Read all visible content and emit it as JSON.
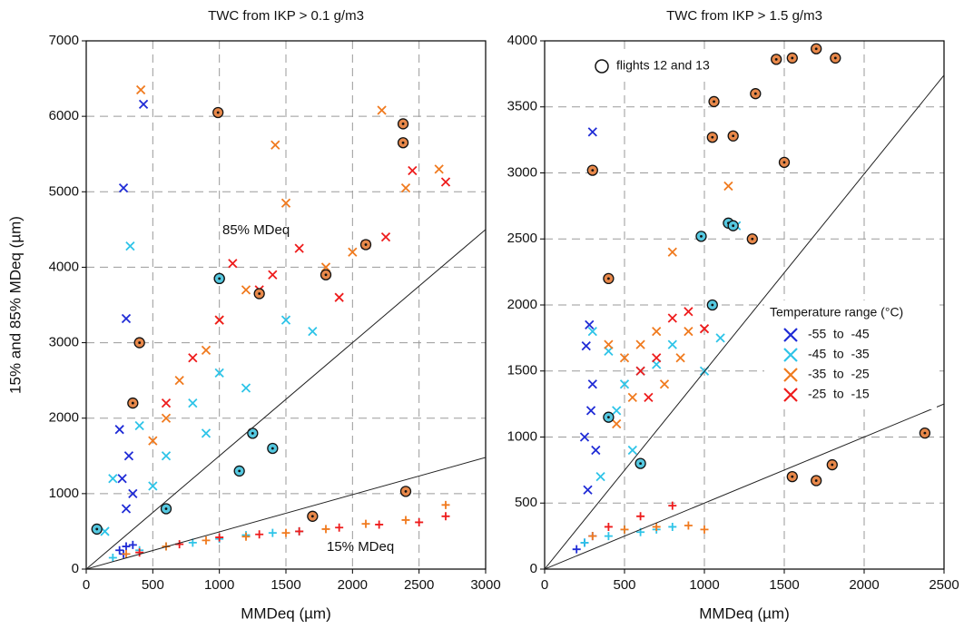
{
  "chart_data": [
    {
      "type": "scatter",
      "title": "TWC from IKP > 0.1 g/m3",
      "xlabel": "MMDeq (µm)",
      "ylabel": "15% and 85% MDeq (µm)",
      "xlim": [
        0,
        3000
      ],
      "ylim": [
        0,
        7000
      ],
      "xticks": [
        0,
        500,
        1000,
        1500,
        2000,
        2500,
        3000
      ],
      "yticks": [
        0,
        1000,
        2000,
        3000,
        4000,
        5000,
        6000,
        7000
      ],
      "grid": true,
      "annotations": [
        "85% MDeq",
        "15% MDeq"
      ],
      "lines": [
        {
          "x": [
            0,
            3000
          ],
          "y": [
            0,
            4500
          ]
        },
        {
          "x": [
            0,
            3000
          ],
          "y": [
            0,
            1480
          ]
        }
      ],
      "series": [
        {
          "color": "#1f2bd6",
          "marker": "+",
          "x": [
            250,
            300,
            350,
            280
          ],
          "y": [
            250,
            300,
            320,
            200
          ]
        },
        {
          "color": "#2ec4e8",
          "marker": "+",
          "x": [
            200,
            400,
            600,
            800,
            1000,
            1200,
            1400,
            1600
          ],
          "y": [
            150,
            250,
            300,
            350,
            400,
            450,
            480,
            500
          ]
        },
        {
          "color": "#f07a1e",
          "marker": "+",
          "x": [
            300,
            600,
            900,
            1200,
            1500,
            1800,
            2100,
            2400,
            2700
          ],
          "y": [
            200,
            300,
            380,
            430,
            480,
            530,
            600,
            650,
            850
          ]
        },
        {
          "color": "#ee1c1c",
          "marker": "+",
          "x": [
            400,
            700,
            1000,
            1300,
            1600,
            1900,
            2200,
            2500,
            2700
          ],
          "y": [
            220,
            330,
            420,
            460,
            500,
            550,
            590,
            620,
            700
          ]
        },
        {
          "color": "#1f2bd6",
          "marker": "x",
          "x": [
            280,
            300,
            320,
            350,
            430,
            250,
            300,
            270
          ],
          "y": [
            5050,
            3320,
            1500,
            1000,
            6160,
            1850,
            800,
            1200
          ]
        },
        {
          "color": "#2ec4e8",
          "marker": "x",
          "x": [
            330,
            200,
            400,
            600,
            800,
            1000,
            1200,
            1500,
            1700,
            140,
            500,
            900
          ],
          "y": [
            4280,
            1200,
            1900,
            1500,
            2200,
            2600,
            2400,
            3300,
            3150,
            500,
            1100,
            1800
          ]
        },
        {
          "color": "#f07a1e",
          "marker": "x",
          "x": [
            410,
            1420,
            2220,
            2650,
            1000,
            700,
            1500,
            2000,
            2400,
            600,
            1200,
            1800,
            900,
            500
          ],
          "y": [
            6350,
            5620,
            6080,
            5300,
            3300,
            2500,
            4850,
            4200,
            5050,
            2000,
            3700,
            4000,
            2900,
            1700
          ]
        },
        {
          "color": "#ee1c1c",
          "marker": "x",
          "x": [
            2450,
            2700,
            1100,
            1300,
            1600,
            1900,
            2100,
            800,
            600,
            1000,
            1400,
            2250
          ],
          "y": [
            5280,
            5130,
            4050,
            3700,
            4250,
            3600,
            4300,
            2800,
            2200,
            3300,
            3900,
            4400
          ]
        },
        {
          "color": "#e8884a",
          "marker": "circle",
          "x": [
            990,
            2380,
            2380,
            1800,
            2100,
            1300,
            1000,
            400,
            350,
            2400,
            1700
          ],
          "y": [
            6050,
            5900,
            5650,
            3900,
            4300,
            3650,
            3850,
            3000,
            2200,
            1030,
            700
          ]
        },
        {
          "color": "#55c8e0",
          "marker": "circle",
          "x": [
            1000,
            1250,
            1150,
            80,
            1400,
            600
          ],
          "y": [
            3850,
            1800,
            1300,
            530,
            1600,
            800
          ]
        }
      ]
    },
    {
      "type": "scatter",
      "title": "TWC from IKP > 1.5 g/m3",
      "xlabel": "MMDeq (µm)",
      "xlim": [
        0,
        2500
      ],
      "ylim": [
        0,
        4000
      ],
      "xticks": [
        0,
        500,
        1000,
        1500,
        2000,
        2500
      ],
      "yticks": [
        0,
        500,
        1000,
        1500,
        2000,
        2500,
        3000,
        3500,
        4000
      ],
      "grid": true,
      "legend_title": "Temperature range (°C)",
      "lines": [
        {
          "x": [
            0,
            2500
          ],
          "y": [
            0,
            3740
          ]
        },
        {
          "x": [
            0,
            2500
          ],
          "y": [
            0,
            1250
          ]
        }
      ],
      "series": [
        {
          "color": "#1f2bd6",
          "marker": "+",
          "x": [
            200,
            250,
            300
          ],
          "y": [
            150,
            200,
            250
          ]
        },
        {
          "color": "#2ec4e8",
          "marker": "+",
          "x": [
            250,
            400,
            500,
            600,
            700,
            800
          ],
          "y": [
            200,
            250,
            300,
            280,
            300,
            320
          ]
        },
        {
          "color": "#f07a1e",
          "marker": "+",
          "x": [
            300,
            500,
            700,
            900,
            1000
          ],
          "y": [
            250,
            300,
            320,
            330,
            300
          ]
        },
        {
          "color": "#ee1c1c",
          "marker": "+",
          "x": [
            400,
            600,
            800
          ],
          "y": [
            320,
            400,
            480
          ]
        },
        {
          "name": "-55  to  -45",
          "color": "#1f2bd6",
          "marker": "x",
          "x": [
            300,
            280,
            260,
            300,
            290,
            250,
            320,
            270
          ],
          "y": [
            3310,
            1850,
            1690,
            1400,
            1200,
            1000,
            900,
            600
          ]
        },
        {
          "name": "-45  to  -35",
          "color": "#2ec4e8",
          "marker": "x",
          "x": [
            300,
            400,
            500,
            600,
            700,
            800,
            1000,
            1100,
            1200,
            350,
            450,
            550
          ],
          "y": [
            1800,
            1650,
            1400,
            1500,
            1550,
            1700,
            1500,
            1750,
            2600,
            700,
            1200,
            900
          ]
        },
        {
          "name": "-35  to  -25",
          "color": "#f07a1e",
          "marker": "x",
          "x": [
            400,
            500,
            600,
            700,
            800,
            900,
            1150,
            450,
            550,
            750,
            850
          ],
          "y": [
            1700,
            1600,
            1700,
            1800,
            2400,
            1800,
            2900,
            1100,
            1300,
            1400,
            1600
          ]
        },
        {
          "name": "-25  to  -15",
          "color": "#ee1c1c",
          "marker": "x",
          "x": [
            600,
            700,
            800,
            900,
            1000,
            650
          ],
          "y": [
            1500,
            1600,
            1900,
            1950,
            1820,
            1300
          ]
        },
        {
          "name": "flights 12 and 13",
          "color": "#e8884a",
          "marker": "circle",
          "x": [
            1700,
            1550,
            1450,
            1820,
            1060,
            1320,
            1180,
            1500,
            300,
            400,
            1050,
            1300,
            1550,
            2380,
            1800,
            1700
          ],
          "y": [
            3940,
            3870,
            3860,
            3870,
            3540,
            3600,
            3280,
            3080,
            3020,
            2200,
            3270,
            2500,
            700,
            1030,
            790,
            670
          ]
        },
        {
          "color": "#55c8e0",
          "marker": "circle",
          "x": [
            980,
            1150,
            1180,
            1050,
            400,
            600
          ],
          "y": [
            2520,
            2620,
            2600,
            2000,
            1150,
            800
          ]
        }
      ]
    }
  ]
}
